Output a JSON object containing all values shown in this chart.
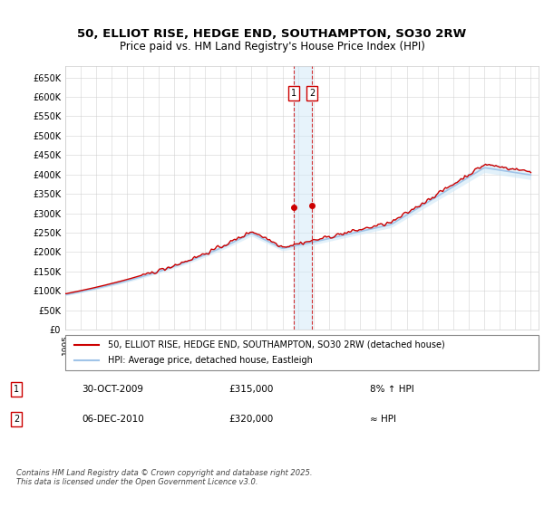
{
  "title": "50, ELLIOT RISE, HEDGE END, SOUTHAMPTON, SO30 2RW",
  "subtitle": "Price paid vs. HM Land Registry's House Price Index (HPI)",
  "legend_line1": "50, ELLIOT RISE, HEDGE END, SOUTHAMPTON, SO30 2RW (detached house)",
  "legend_line2": "HPI: Average price, detached house, Eastleigh",
  "annotation1_label": "1",
  "annotation1_date": "30-OCT-2009",
  "annotation1_price": "£315,000",
  "annotation1_hpi": "8% ↑ HPI",
  "annotation2_label": "2",
  "annotation2_date": "06-DEC-2010",
  "annotation2_price": "£320,000",
  "annotation2_hpi": "≈ HPI",
  "footer": "Contains HM Land Registry data © Crown copyright and database right 2025.\nThis data is licensed under the Open Government Licence v3.0.",
  "hpi_color": "#a0c4e8",
  "price_color": "#cc0000",
  "annotation_color": "#cc0000",
  "vline_color": "#cc0000",
  "vband_color": "#d0e8f8",
  "ylim": [
    0,
    680000
  ],
  "yticks": [
    0,
    50000,
    100000,
    150000,
    200000,
    250000,
    300000,
    350000,
    400000,
    450000,
    500000,
    550000,
    600000,
    650000
  ],
  "year_start": 1995,
  "year_end": 2025
}
